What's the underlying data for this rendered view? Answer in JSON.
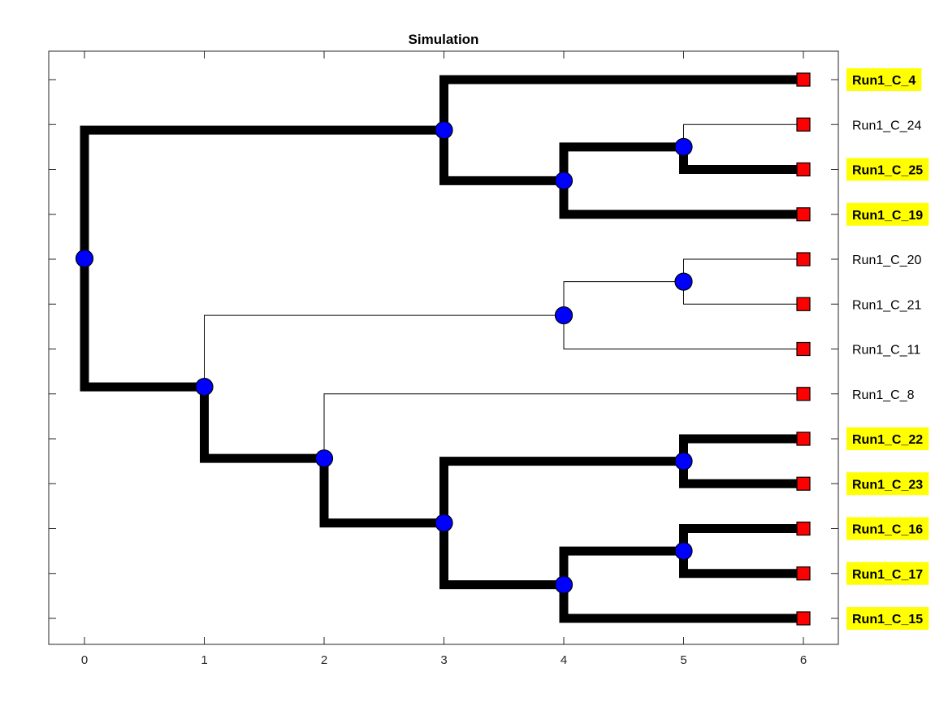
{
  "title": "Simulation",
  "x_ticks": [
    "0",
    "1",
    "2",
    "3",
    "4",
    "5",
    "6"
  ],
  "colors": {
    "node_fill": "#0000ff",
    "leaf_fill": "#ff0000",
    "highlight": "#ffff00",
    "branch": "#000000"
  },
  "leaves": [
    {
      "label": "Run1_C_4",
      "highlight": true
    },
    {
      "label": "Run1_C_24",
      "highlight": false
    },
    {
      "label": "Run1_C_25",
      "highlight": true
    },
    {
      "label": "Run1_C_19",
      "highlight": true
    },
    {
      "label": "Run1_C_20",
      "highlight": false
    },
    {
      "label": "Run1_C_21",
      "highlight": false
    },
    {
      "label": "Run1_C_11",
      "highlight": false
    },
    {
      "label": "Run1_C_8",
      "highlight": false
    },
    {
      "label": "Run1_C_22",
      "highlight": true
    },
    {
      "label": "Run1_C_23",
      "highlight": true
    },
    {
      "label": "Run1_C_16",
      "highlight": true
    },
    {
      "label": "Run1_C_17",
      "highlight": true
    },
    {
      "label": "Run1_C_15",
      "highlight": true
    }
  ],
  "tree": {
    "depth": 0,
    "children": [
      {
        "depth": 3,
        "children": [
          {
            "leaf": 0
          },
          {
            "depth": 4,
            "children": [
              {
                "depth": 5,
                "children": [
                  {
                    "leaf": 1
                  },
                  {
                    "leaf": 2
                  }
                ]
              },
              {
                "leaf": 3
              }
            ]
          }
        ]
      },
      {
        "depth": 1,
        "children": [
          {
            "depth": 4,
            "children": [
              {
                "depth": 5,
                "children": [
                  {
                    "leaf": 4
                  },
                  {
                    "leaf": 5
                  }
                ]
              },
              {
                "leaf": 6
              }
            ]
          },
          {
            "depth": 2,
            "children": [
              {
                "leaf": 7
              },
              {
                "depth": 3,
                "children": [
                  {
                    "depth": 5,
                    "children": [
                      {
                        "leaf": 8
                      },
                      {
                        "leaf": 9
                      }
                    ]
                  },
                  {
                    "depth": 4,
                    "children": [
                      {
                        "depth": 5,
                        "children": [
                          {
                            "leaf": 10
                          },
                          {
                            "leaf": 11
                          }
                        ]
                      },
                      {
                        "leaf": 12
                      }
                    ]
                  }
                ]
              }
            ]
          }
        ]
      }
    ]
  }
}
